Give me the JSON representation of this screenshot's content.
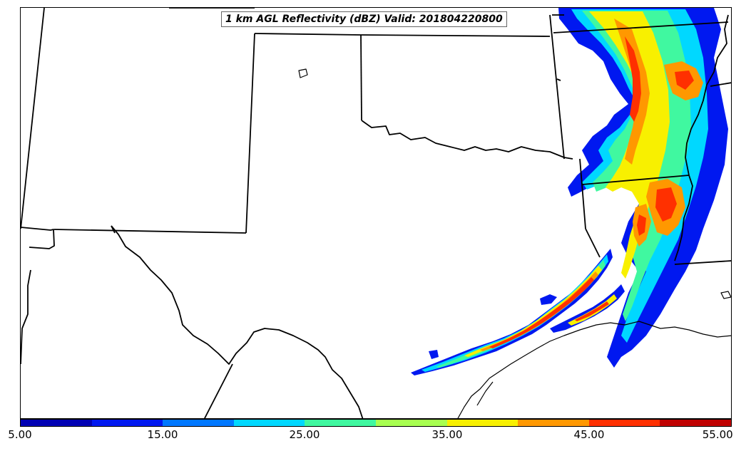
{
  "title": "1 km AGL Reflectivity (dBZ) Valid: 201804220800",
  "colorbar": {
    "ticks": [
      "5.00",
      "15.00",
      "25.00",
      "35.00",
      "45.00",
      "55.00"
    ],
    "bins": [
      {
        "from": 5,
        "to": 10,
        "color": "#0000b4"
      },
      {
        "from": 10,
        "to": 15,
        "color": "#0018f0"
      },
      {
        "from": 15,
        "to": 20,
        "color": "#0078ff"
      },
      {
        "from": 20,
        "to": 25,
        "color": "#00d8ff"
      },
      {
        "from": 25,
        "to": 30,
        "color": "#40f8a0"
      },
      {
        "from": 30,
        "to": 35,
        "color": "#a8ff50"
      },
      {
        "from": 35,
        "to": 40,
        "color": "#f8f000"
      },
      {
        "from": 40,
        "to": 45,
        "color": "#ff9800"
      },
      {
        "from": 45,
        "to": 50,
        "color": "#ff3000"
      },
      {
        "from": 50,
        "to": 55,
        "color": "#c00000"
      }
    ]
  },
  "map": {
    "region": "Southern Plains / Texas",
    "boundaries": [
      "state-borders",
      "coastline"
    ]
  }
}
